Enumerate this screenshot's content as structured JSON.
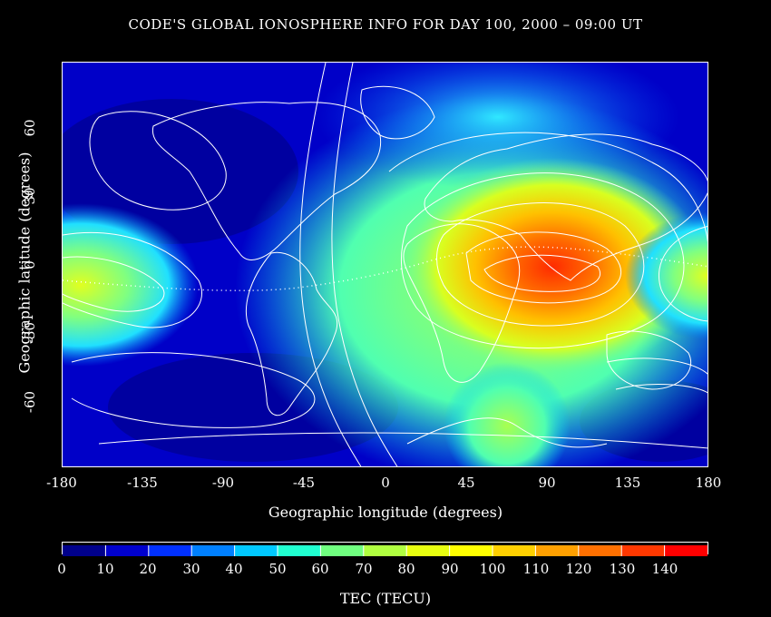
{
  "title": "CODE'S GLOBAL IONOSPHERE INFO FOR DAY 100, 2000 – 09:00 UT",
  "map": {
    "x_axis_label": "Geographic longitude (degrees)",
    "y_axis_label": "Geographic latitude (degrees)",
    "x_ticks": [
      "-180",
      "-135",
      "-90",
      "-45",
      "0",
      "45",
      "90",
      "135",
      "180"
    ],
    "y_ticks": [
      "60",
      "30",
      "0",
      "-30",
      "-60"
    ],
    "lon_range": [
      -180,
      180
    ],
    "lat_range": [
      -87.5,
      87.5
    ],
    "overlay": "coastlines, TEC contours, magnetic equator (dotted)"
  },
  "colorbar": {
    "label": "TEC (TECU)",
    "ticks": [
      "0",
      "10",
      "20",
      "30",
      "40",
      "50",
      "60",
      "70",
      "80",
      "90",
      "100",
      "110",
      "120",
      "130",
      "140"
    ],
    "range": [
      0,
      150
    ],
    "colors": [
      "#00008b",
      "#0000cd",
      "#0030ff",
      "#0080ff",
      "#00c8ff",
      "#20ffd0",
      "#70ff80",
      "#b0ff40",
      "#e8ff10",
      "#ffff00",
      "#ffd000",
      "#ffa000",
      "#ff7000",
      "#ff3800",
      "#ff0000"
    ]
  },
  "tec_features": {
    "peak_value_tecu": 135,
    "peak_lon": 75,
    "peak_lat": -2,
    "secondary_peak_lon": -180,
    "secondary_peak_lat": -5,
    "secondary_peak_value_tecu": 85,
    "minimum_value_tecu": 5
  }
}
